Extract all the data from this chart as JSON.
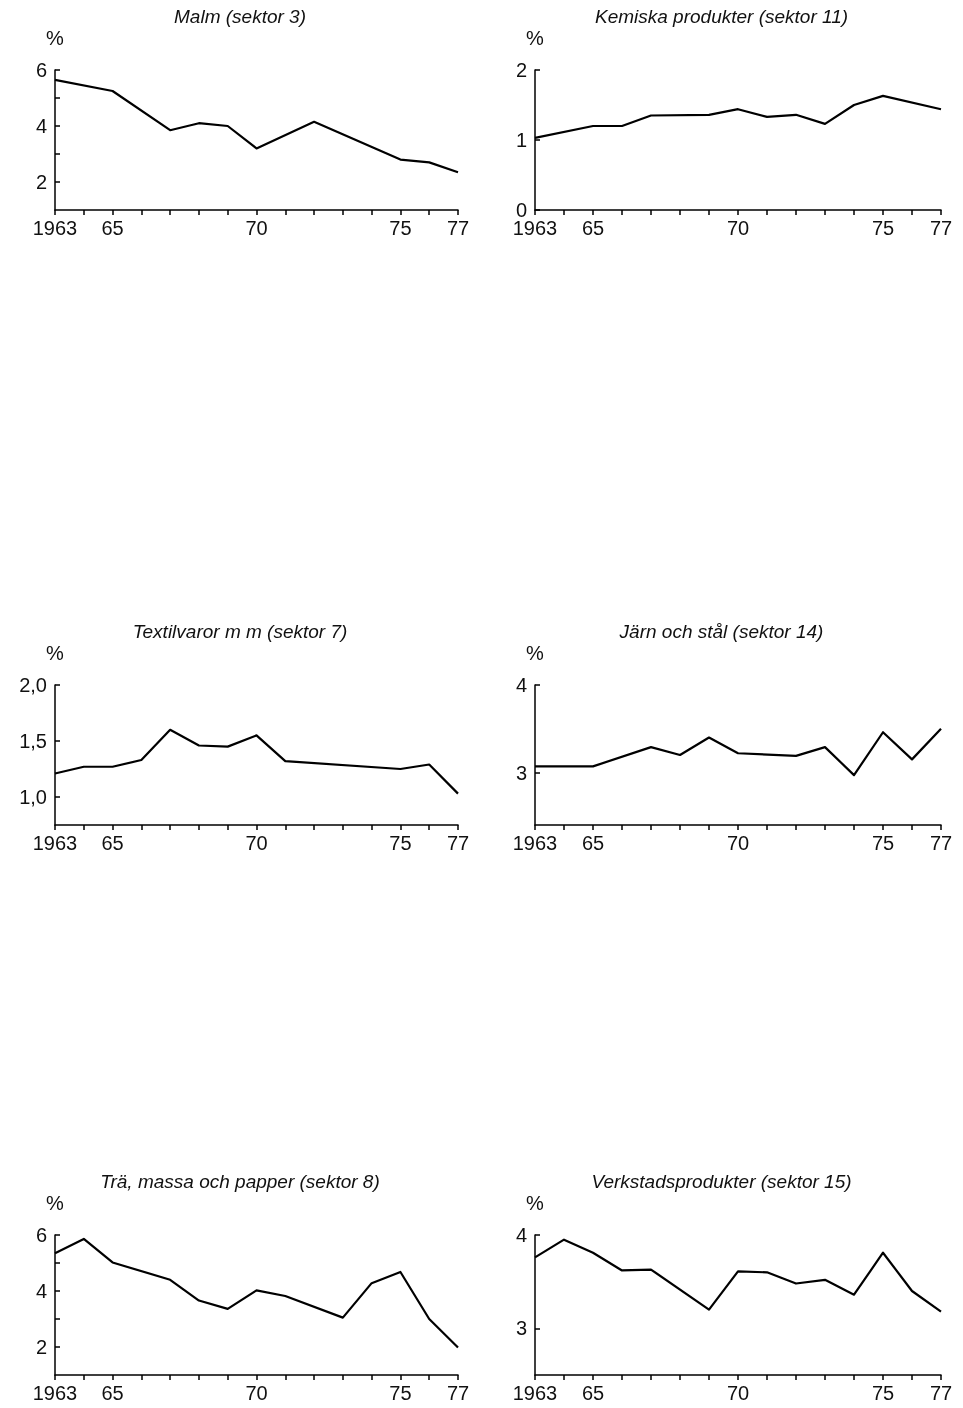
{
  "chart_data": [
    {
      "type": "line",
      "title": "Malm (sektor 3)",
      "ylabel": "%",
      "marker": "none",
      "xlim": [
        1963,
        1977
      ],
      "xticks": [
        {
          "value": 1963,
          "label": "1963"
        },
        {
          "value": 1964,
          "label": null
        },
        {
          "value": 1965,
          "label": "65"
        },
        {
          "value": 1966,
          "label": null
        },
        {
          "value": 1967,
          "label": null
        },
        {
          "value": 1968,
          "label": null
        },
        {
          "value": 1969,
          "label": null
        },
        {
          "value": 1970,
          "label": "70"
        },
        {
          "value": 1971,
          "label": null
        },
        {
          "value": 1972,
          "label": null
        },
        {
          "value": 1973,
          "label": null
        },
        {
          "value": 1974,
          "label": null
        },
        {
          "value": 1975,
          "label": "75"
        },
        {
          "value": 1976,
          "label": null
        },
        {
          "value": 1977,
          "label": "77"
        }
      ],
      "ylim": [
        1,
        6
      ],
      "yticks": [
        2,
        {
          "value": 3,
          "label": null
        },
        4,
        {
          "value": 5,
          "label": null
        },
        6
      ],
      "series": [
        {
          "color": "#000000",
          "x": [
            1963,
            1965,
            1967,
            1968,
            1969,
            1970,
            1972,
            1975,
            1976,
            1977
          ],
          "values": [
            5.65,
            5.25,
            3.85,
            4.1,
            4.0,
            3.2,
            4.15,
            2.8,
            2.7,
            2.35
          ]
        }
      ]
    },
    {
      "type": "line",
      "title": "Kemiska produkter (sektor 11)",
      "ylabel": "%",
      "marker": "none",
      "xlim": [
        1963,
        1977
      ],
      "xticks": [
        {
          "value": 1963,
          "label": "1963"
        },
        {
          "value": 1964,
          "label": null
        },
        {
          "value": 1965,
          "label": "65"
        },
        {
          "value": 1966,
          "label": null
        },
        {
          "value": 1967,
          "label": null
        },
        {
          "value": 1968,
          "label": null
        },
        {
          "value": 1969,
          "label": null
        },
        {
          "value": 1970,
          "label": "70"
        },
        {
          "value": 1971,
          "label": null
        },
        {
          "value": 1972,
          "label": null
        },
        {
          "value": 1973,
          "label": null
        },
        {
          "value": 1974,
          "label": null
        },
        {
          "value": 1975,
          "label": "75"
        },
        {
          "value": 1976,
          "label": null
        },
        {
          "value": 1977,
          "label": "77"
        }
      ],
      "ylim": [
        0,
        2
      ],
      "yticks": [
        0,
        1,
        2
      ],
      "series": [
        {
          "color": "#000000",
          "x": [
            1963,
            1965,
            1966,
            1967,
            1969,
            1970,
            1971,
            1972,
            1973,
            1974,
            1975,
            1977
          ],
          "values": [
            1.03,
            1.2,
            1.2,
            1.35,
            1.36,
            1.44,
            1.33,
            1.36,
            1.23,
            1.5,
            1.63,
            1.44
          ]
        }
      ]
    },
    {
      "type": "line",
      "title": "Textilvaror m m (sektor 7)",
      "ylabel": "%",
      "marker": "none",
      "xlim": [
        1963,
        1977
      ],
      "xticks": [
        {
          "value": 1963,
          "label": "1963"
        },
        {
          "value": 1964,
          "label": null
        },
        {
          "value": 1965,
          "label": "65"
        },
        {
          "value": 1966,
          "label": null
        },
        {
          "value": 1967,
          "label": null
        },
        {
          "value": 1968,
          "label": null
        },
        {
          "value": 1969,
          "label": null
        },
        {
          "value": 1970,
          "label": "70"
        },
        {
          "value": 1971,
          "label": null
        },
        {
          "value": 1972,
          "label": null
        },
        {
          "value": 1973,
          "label": null
        },
        {
          "value": 1974,
          "label": null
        },
        {
          "value": 1975,
          "label": "75"
        },
        {
          "value": 1976,
          "label": null
        },
        {
          "value": 1977,
          "label": "77"
        }
      ],
      "ylim": [
        0.75,
        2.0
      ],
      "yticks": [
        {
          "value": 1.0,
          "label": "1,0"
        },
        {
          "value": 1.5,
          "label": "1,5"
        },
        {
          "value": 2.0,
          "label": "2,0"
        }
      ],
      "series": [
        {
          "color": "#000000",
          "x": [
            1963,
            1964,
            1965,
            1966,
            1967,
            1968,
            1969,
            1970,
            1971,
            1975,
            1976,
            1977
          ],
          "values": [
            1.21,
            1.27,
            1.27,
            1.33,
            1.6,
            1.46,
            1.45,
            1.55,
            1.32,
            1.25,
            1.29,
            1.03
          ]
        }
      ]
    },
    {
      "type": "line",
      "title": "Järn och stål (sektor 14)",
      "ylabel": "%",
      "marker": "none",
      "xlim": [
        1963,
        1977
      ],
      "xticks": [
        {
          "value": 1963,
          "label": "1963"
        },
        {
          "value": 1964,
          "label": null
        },
        {
          "value": 1965,
          "label": "65"
        },
        {
          "value": 1966,
          "label": null
        },
        {
          "value": 1967,
          "label": null
        },
        {
          "value": 1968,
          "label": null
        },
        {
          "value": 1969,
          "label": null
        },
        {
          "value": 1970,
          "label": "70"
        },
        {
          "value": 1971,
          "label": null
        },
        {
          "value": 1972,
          "label": null
        },
        {
          "value": 1973,
          "label": null
        },
        {
          "value": 1974,
          "label": null
        },
        {
          "value": 1975,
          "label": "75"
        },
        {
          "value": 1976,
          "label": null
        },
        {
          "value": 1977,
          "label": "77"
        }
      ],
      "ylim": [
        2.4,
        4
      ],
      "yticks": [
        3,
        4
      ],
      "series": [
        {
          "color": "#000000",
          "x": [
            1963,
            1965,
            1967,
            1968,
            1969,
            1970,
            1972,
            1973,
            1974,
            1975,
            1976,
            1977
          ],
          "values": [
            3.07,
            3.07,
            3.29,
            3.2,
            3.4,
            3.22,
            3.19,
            3.29,
            2.97,
            3.46,
            3.15,
            3.5
          ]
        }
      ]
    },
    {
      "type": "line",
      "title": "Trä, massa och papper (sektor 8)",
      "ylabel": "%",
      "marker": "none",
      "xlim": [
        1963,
        1977
      ],
      "xticks": [
        {
          "value": 1963,
          "label": "1963"
        },
        {
          "value": 1964,
          "label": null
        },
        {
          "value": 1965,
          "label": "65"
        },
        {
          "value": 1966,
          "label": null
        },
        {
          "value": 1967,
          "label": null
        },
        {
          "value": 1968,
          "label": null
        },
        {
          "value": 1969,
          "label": null
        },
        {
          "value": 1970,
          "label": "70"
        },
        {
          "value": 1971,
          "label": null
        },
        {
          "value": 1972,
          "label": null
        },
        {
          "value": 1973,
          "label": null
        },
        {
          "value": 1974,
          "label": null
        },
        {
          "value": 1975,
          "label": "75"
        },
        {
          "value": 1976,
          "label": null
        },
        {
          "value": 1977,
          "label": "77"
        }
      ],
      "ylim": [
        1,
        6
      ],
      "yticks": [
        2,
        {
          "value": 3,
          "label": null
        },
        4,
        {
          "value": 5,
          "label": null
        },
        6
      ],
      "series": [
        {
          "color": "#000000",
          "x": [
            1963,
            1964,
            1965,
            1967,
            1968,
            1969,
            1970,
            1971,
            1973,
            1974,
            1975,
            1976,
            1977
          ],
          "values": [
            5.35,
            5.86,
            5.02,
            4.4,
            3.66,
            3.36,
            4.02,
            3.82,
            3.05,
            4.28,
            4.68,
            3.0,
            1.98
          ]
        }
      ]
    },
    {
      "type": "line",
      "title": "Verkstadsprodukter (sektor 15)",
      "ylabel": "%",
      "marker": "none",
      "xlim": [
        1963,
        1977
      ],
      "xticks": [
        {
          "value": 1963,
          "label": "1963"
        },
        {
          "value": 1964,
          "label": null
        },
        {
          "value": 1965,
          "label": "65"
        },
        {
          "value": 1966,
          "label": null
        },
        {
          "value": 1967,
          "label": null
        },
        {
          "value": 1968,
          "label": null
        },
        {
          "value": 1969,
          "label": null
        },
        {
          "value": 1970,
          "label": "70"
        },
        {
          "value": 1971,
          "label": null
        },
        {
          "value": 1972,
          "label": null
        },
        {
          "value": 1973,
          "label": null
        },
        {
          "value": 1974,
          "label": null
        },
        {
          "value": 1975,
          "label": "75"
        },
        {
          "value": 1976,
          "label": null
        },
        {
          "value": 1977,
          "label": "77"
        }
      ],
      "ylim": [
        2.5,
        4
      ],
      "yticks": [
        3,
        4
      ],
      "series": [
        {
          "color": "#000000",
          "x": [
            1963,
            1964,
            1965,
            1966,
            1967,
            1969,
            1970,
            1971,
            1972,
            1973,
            1974,
            1975,
            1976,
            1977
          ],
          "values": [
            3.76,
            3.95,
            3.81,
            3.62,
            3.63,
            3.2,
            3.61,
            3.6,
            3.48,
            3.52,
            3.36,
            3.81,
            3.4,
            3.18
          ]
        }
      ]
    }
  ]
}
